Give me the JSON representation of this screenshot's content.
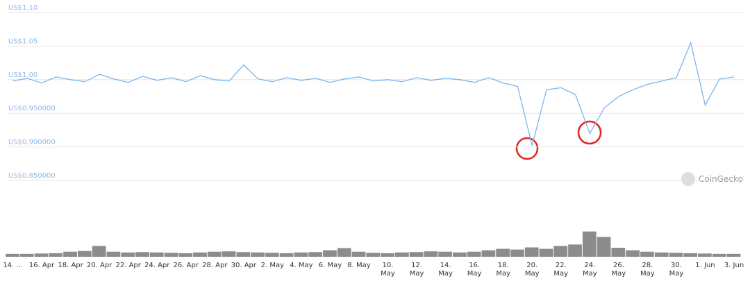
{
  "chart_data": [
    {
      "type": "line",
      "watermark": "CoinGecko",
      "categories": [
        "14. ...",
        null,
        "16. Apr",
        null,
        "18. Apr",
        null,
        "20. Apr",
        null,
        "22. Apr",
        null,
        "24. Apr",
        null,
        "26. Apr",
        null,
        "28. Apr",
        null,
        "30. Apr",
        null,
        "2. May",
        null,
        "4. May",
        null,
        "6. May",
        null,
        "8. May",
        null,
        "10.\nMay",
        null,
        "12.\nMay",
        null,
        "14.\nMay",
        null,
        "16.\nMay",
        null,
        "18.\nMay",
        null,
        "20.\nMay",
        null,
        "22.\nMay",
        null,
        "24.\nMay",
        null,
        "26.\nMay",
        null,
        "28.\nMay",
        null,
        "30.\nMay",
        null,
        "1. Jun",
        null,
        "3. Jun"
      ],
      "values": [
        0.998,
        1.002,
        0.995,
        1.004,
        1.0,
        0.997,
        1.008,
        1.001,
        0.996,
        1.005,
        0.999,
        1.003,
        0.997,
        1.006,
        1.0,
        0.998,
        1.022,
        1.001,
        0.997,
        1.003,
        0.999,
        1.002,
        0.996,
        1.001,
        1.004,
        0.998,
        1.0,
        0.997,
        1.003,
        0.999,
        1.002,
        1.0,
        0.996,
        1.003,
        0.995,
        0.99,
        0.902,
        0.985,
        0.988,
        0.978,
        0.92,
        0.958,
        0.975,
        0.985,
        0.993,
        0.998,
        1.003,
        1.055,
        0.962,
        1.001,
        1.004
      ],
      "color": "#7cb5ec",
      "ylim": [
        0.85,
        1.1
      ],
      "yticks": [
        {
          "value": 0.85,
          "label": "US$0.850000"
        },
        {
          "value": 0.9,
          "label": "US$0.900000"
        },
        {
          "value": 0.95,
          "label": "US$0.950000"
        },
        {
          "value": 1.0,
          "label": "US$1.00"
        },
        {
          "value": 1.05,
          "label": "US$1.05"
        },
        {
          "value": 1.1,
          "label": "US$1.10"
        }
      ],
      "grid": true
    },
    {
      "type": "bar",
      "values": [
        8,
        8,
        9,
        10,
        14,
        16,
        30,
        14,
        12,
        13,
        12,
        11,
        10,
        12,
        14,
        15,
        13,
        12,
        11,
        10,
        12,
        13,
        18,
        24,
        14,
        11,
        10,
        12,
        13,
        15,
        14,
        12,
        14,
        18,
        22,
        20,
        26,
        22,
        30,
        34,
        70,
        55,
        25,
        18,
        14,
        12,
        11,
        10,
        9,
        8,
        8
      ],
      "color": "#8c8c8c",
      "ylim": [
        0,
        100
      ]
    }
  ]
}
